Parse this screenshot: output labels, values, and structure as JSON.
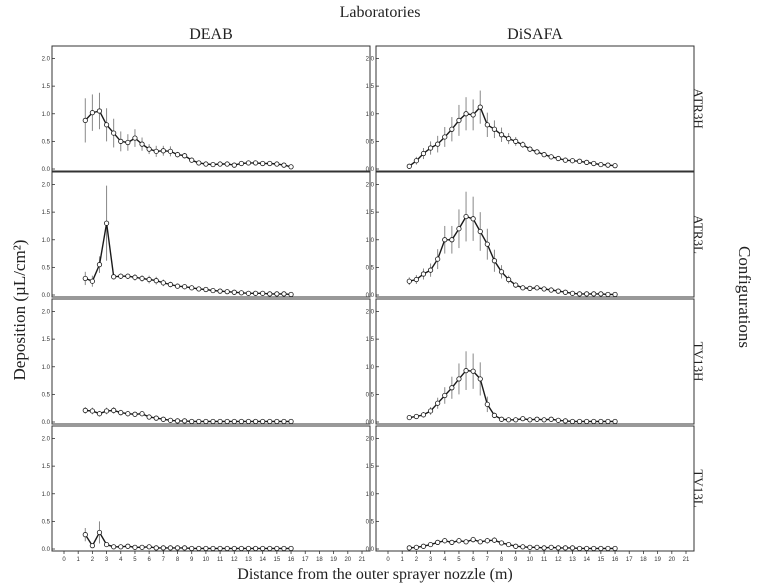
{
  "figure": {
    "top_title": "Laboratories",
    "columns": [
      "DEAB",
      "DiSAFA"
    ],
    "rows": [
      "ATR3H",
      "ATR3L",
      "TV13H",
      "TV13L"
    ],
    "right_title": "Configurations",
    "ylabel": "Deposition (µL/cm²)",
    "xlabel": "Distance from the outer sprayer nozzle (m)",
    "colors": {
      "line": "#1a1a1a",
      "error_bar": "#888888",
      "frame": "#333333",
      "marker_fill": "#ffffff"
    }
  },
  "chart_data": {
    "type": "line",
    "layout": "facet-grid",
    "xlim": [
      0,
      21
    ],
    "ylim": [
      0,
      2.1
    ],
    "x_ticks": [
      0,
      1,
      2,
      3,
      4,
      5,
      6,
      7,
      8,
      9,
      10,
      11,
      12,
      13,
      14,
      15,
      16,
      17,
      18,
      19,
      20,
      21
    ],
    "y_ticks": [
      "0.0",
      "0.5",
      "1.0",
      "1.5",
      "2.0"
    ],
    "x": [
      1.5,
      2,
      2.5,
      3,
      3.5,
      4,
      4.5,
      5,
      5.5,
      6,
      6.5,
      7,
      7.5,
      8,
      8.5,
      9,
      9.5,
      10,
      10.5,
      11,
      11.5,
      12,
      12.5,
      13,
      13.5,
      14,
      14.5,
      15,
      15.5,
      16
    ],
    "panels": [
      {
        "row": "ATR3H",
        "lab": "DEAB",
        "y": [
          0.88,
          1.02,
          1.05,
          0.8,
          0.65,
          0.5,
          0.48,
          0.56,
          0.45,
          0.36,
          0.32,
          0.33,
          0.32,
          0.26,
          0.24,
          0.16,
          0.11,
          0.09,
          0.08,
          0.09,
          0.09,
          0.07,
          0.1,
          0.11,
          0.11,
          0.1,
          0.1,
          0.09,
          0.07,
          0.04
        ],
        "err": [
          0.4,
          0.33,
          0.33,
          0.3,
          0.26,
          0.18,
          0.15,
          0.16,
          0.12,
          0.09,
          0.1,
          0.09,
          0.09,
          0.05,
          0.05,
          0.03,
          0.02,
          0.02,
          0.02,
          0.02,
          0.02,
          0.02,
          0.03,
          0.03,
          0.03,
          0.03,
          0.02,
          0.02,
          0.02,
          0.01
        ]
      },
      {
        "row": "ATR3H",
        "lab": "DiSAFA",
        "y": [
          0.05,
          0.15,
          0.28,
          0.38,
          0.45,
          0.58,
          0.72,
          0.88,
          1.0,
          0.98,
          1.12,
          0.8,
          0.72,
          0.62,
          0.55,
          0.5,
          0.44,
          0.36,
          0.31,
          0.26,
          0.22,
          0.19,
          0.16,
          0.15,
          0.14,
          0.12,
          0.1,
          0.08,
          0.07,
          0.06
        ],
        "err": [
          0.04,
          0.07,
          0.1,
          0.12,
          0.15,
          0.18,
          0.22,
          0.28,
          0.3,
          0.28,
          0.3,
          0.22,
          0.16,
          0.13,
          0.1,
          0.08,
          0.06,
          0.05,
          0.04,
          0.04,
          0.03,
          0.03,
          0.03,
          0.03,
          0.03,
          0.02,
          0.02,
          0.02,
          0.02,
          0.01
        ]
      },
      {
        "row": "ATR3L",
        "lab": "DEAB",
        "y": [
          0.3,
          0.25,
          0.55,
          1.3,
          0.33,
          0.34,
          0.34,
          0.32,
          0.3,
          0.28,
          0.26,
          0.22,
          0.19,
          0.16,
          0.15,
          0.13,
          0.11,
          0.1,
          0.08,
          0.07,
          0.06,
          0.05,
          0.04,
          0.03,
          0.03,
          0.03,
          0.02,
          0.02,
          0.02,
          0.01
        ],
        "err": [
          0.12,
          0.1,
          0.15,
          0.68,
          0.05,
          0.05,
          0.05,
          0.06,
          0.06,
          0.07,
          0.07,
          0.06,
          0.05,
          0.04,
          0.04,
          0.03,
          0.03,
          0.02,
          0.02,
          0.02,
          0.02,
          0.01,
          0.01,
          0.01,
          0.01,
          0.01,
          0.01,
          0.01,
          0.01,
          0.01
        ]
      },
      {
        "row": "ATR3L",
        "lab": "DiSAFA",
        "y": [
          0.25,
          0.28,
          0.38,
          0.45,
          0.65,
          1.0,
          1.0,
          1.2,
          1.42,
          1.38,
          1.15,
          0.92,
          0.62,
          0.42,
          0.28,
          0.18,
          0.13,
          0.12,
          0.13,
          0.11,
          0.09,
          0.07,
          0.05,
          0.03,
          0.02,
          0.02,
          0.02,
          0.02,
          0.01,
          0.01
        ],
        "err": [
          0.07,
          0.08,
          0.1,
          0.12,
          0.18,
          0.25,
          0.25,
          0.35,
          0.45,
          0.4,
          0.35,
          0.28,
          0.2,
          0.12,
          0.07,
          0.05,
          0.04,
          0.03,
          0.03,
          0.03,
          0.02,
          0.02,
          0.02,
          0.01,
          0.01,
          0.01,
          0.01,
          0.01,
          0.01,
          0.01
        ]
      },
      {
        "row": "TV13H",
        "lab": "DEAB",
        "y": [
          0.21,
          0.2,
          0.15,
          0.2,
          0.21,
          0.17,
          0.15,
          0.14,
          0.15,
          0.09,
          0.07,
          0.05,
          0.03,
          0.02,
          0.02,
          0.01,
          0.01,
          0.01,
          0.01,
          0.01,
          0.01,
          0.01,
          0.01,
          0.01,
          0.01,
          0.01,
          0.01,
          0.01,
          0.01,
          0.01
        ],
        "err": [
          0.06,
          0.06,
          0.05,
          0.06,
          0.06,
          0.05,
          0.05,
          0.04,
          0.04,
          0.03,
          0.02,
          0.02,
          0.01,
          0.01,
          0.01,
          0.01,
          0.01,
          0.01,
          0.01,
          0.01,
          0.01,
          0.01,
          0.01,
          0.01,
          0.01,
          0.01,
          0.01,
          0.01,
          0.01,
          0.01
        ]
      },
      {
        "row": "TV13H",
        "lab": "DiSAFA",
        "y": [
          0.08,
          0.1,
          0.13,
          0.2,
          0.34,
          0.48,
          0.62,
          0.78,
          0.93,
          0.92,
          0.78,
          0.32,
          0.12,
          0.05,
          0.04,
          0.04,
          0.06,
          0.04,
          0.05,
          0.04,
          0.05,
          0.03,
          0.02,
          0.01,
          0.01,
          0.01,
          0.01,
          0.01,
          0.01,
          0.01
        ],
        "err": [
          0.03,
          0.04,
          0.05,
          0.07,
          0.1,
          0.15,
          0.2,
          0.28,
          0.35,
          0.32,
          0.3,
          0.14,
          0.05,
          0.02,
          0.02,
          0.02,
          0.02,
          0.02,
          0.02,
          0.02,
          0.02,
          0.01,
          0.01,
          0.01,
          0.01,
          0.01,
          0.01,
          0.01,
          0.01,
          0.01
        ]
      },
      {
        "row": "TV13L",
        "lab": "DEAB",
        "y": [
          0.26,
          0.06,
          0.3,
          0.08,
          0.04,
          0.04,
          0.05,
          0.03,
          0.03,
          0.04,
          0.02,
          0.02,
          0.02,
          0.02,
          0.02,
          0.01,
          0.01,
          0.01,
          0.01,
          0.01,
          0.01,
          0.01,
          0.01,
          0.01,
          0.01,
          0.01,
          0.01,
          0.01,
          0.01,
          0.01
        ],
        "err": [
          0.12,
          0.03,
          0.2,
          0.03,
          0.02,
          0.02,
          0.02,
          0.01,
          0.01,
          0.02,
          0.01,
          0.01,
          0.01,
          0.01,
          0.01,
          0.01,
          0.01,
          0.01,
          0.01,
          0.01,
          0.01,
          0.01,
          0.01,
          0.01,
          0.01,
          0.01,
          0.01,
          0.01,
          0.01,
          0.01
        ]
      },
      {
        "row": "TV13L",
        "lab": "DiSAFA",
        "y": [
          0.02,
          0.03,
          0.05,
          0.08,
          0.12,
          0.15,
          0.12,
          0.15,
          0.13,
          0.17,
          0.13,
          0.15,
          0.16,
          0.11,
          0.08,
          0.05,
          0.04,
          0.03,
          0.03,
          0.02,
          0.03,
          0.02,
          0.02,
          0.02,
          0.01,
          0.01,
          0.01,
          0.01,
          0.01,
          0.01
        ],
        "err": [
          0.01,
          0.01,
          0.02,
          0.03,
          0.04,
          0.05,
          0.04,
          0.05,
          0.04,
          0.05,
          0.04,
          0.05,
          0.05,
          0.04,
          0.03,
          0.02,
          0.02,
          0.01,
          0.01,
          0.01,
          0.01,
          0.01,
          0.01,
          0.01,
          0.01,
          0.01,
          0.01,
          0.01,
          0.01,
          0.01
        ]
      }
    ]
  }
}
